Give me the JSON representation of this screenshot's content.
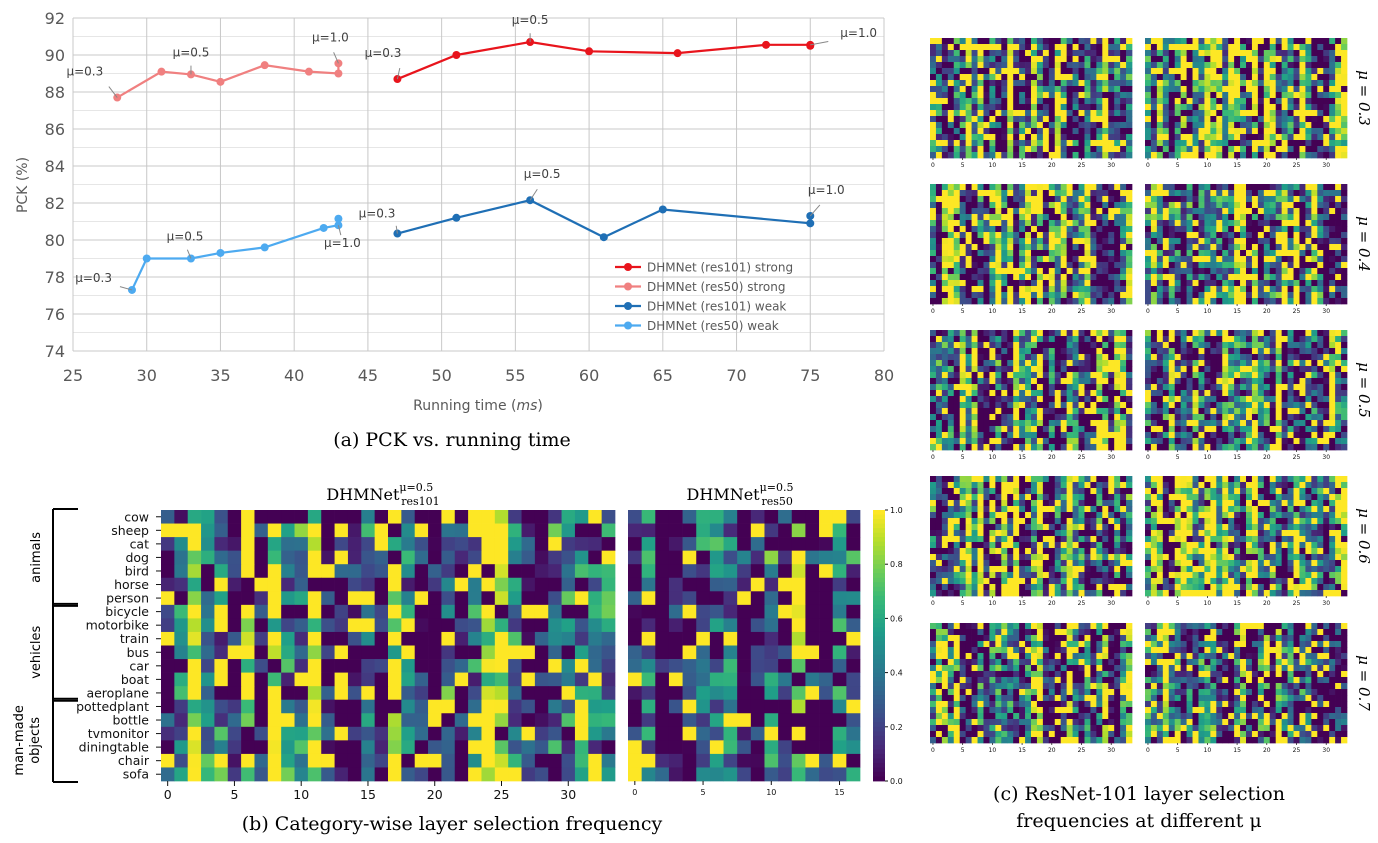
{
  "chart_data": [
    {
      "type": "line",
      "title": "",
      "caption": "(a) PCK vs. running time",
      "xlabel_prefix": "Running time (",
      "xlabel_unit": "ms",
      "xlabel_suffix": ")",
      "ylabel": "PCK (%)",
      "xlim": [
        25,
        80
      ],
      "ylim": [
        74,
        92
      ],
      "xticks": [
        25,
        30,
        35,
        40,
        45,
        50,
        55,
        60,
        65,
        70,
        75,
        80
      ],
      "yticks": [
        74,
        76,
        78,
        80,
        82,
        84,
        86,
        88,
        90,
        92
      ],
      "grid": true,
      "legend_position": "lower-right",
      "series": [
        {
          "name": "DHMNet (res101) strong",
          "color": "#e8141c",
          "points": [
            [
              47,
              88.7
            ],
            [
              51,
              90.0
            ],
            [
              56,
              90.7
            ],
            [
              60,
              90.2
            ],
            [
              66,
              90.1
            ],
            [
              72,
              90.55
            ],
            [
              75,
              90.55
            ],
            [
              75,
              90.5
            ]
          ]
        },
        {
          "name": "DHMNet (res50) strong",
          "color": "#f08080",
          "points": [
            [
              28,
              87.7
            ],
            [
              31,
              89.1
            ],
            [
              33,
              88.95
            ],
            [
              35,
              88.55
            ],
            [
              38,
              89.45
            ],
            [
              41,
              89.1
            ],
            [
              43,
              89.0
            ],
            [
              43,
              89.55
            ]
          ]
        },
        {
          "name": "DHMNet (res101) weak",
          "color": "#1f6fb5",
          "points": [
            [
              47,
              80.35
            ],
            [
              51,
              81.2
            ],
            [
              56,
              82.15
            ],
            [
              61,
              80.15
            ],
            [
              65,
              81.65
            ],
            [
              75,
              80.9
            ],
            [
              75,
              81.3
            ]
          ]
        },
        {
          "name": "DHMNet (res50) weak",
          "color": "#4daaf0",
          "points": [
            [
              29,
              77.3
            ],
            [
              30,
              79.0
            ],
            [
              33,
              79.0
            ],
            [
              35,
              79.3
            ],
            [
              38,
              79.6
            ],
            [
              42,
              80.65
            ],
            [
              43,
              80.8
            ],
            [
              43,
              81.15
            ]
          ]
        }
      ],
      "annotations": [
        {
          "text": "μ=0.3",
          "at": [
            28,
            87.7
          ]
        },
        {
          "text": "μ=0.5",
          "at": [
            33,
            88.95
          ]
        },
        {
          "text": "μ=1.0",
          "at": [
            43,
            89.55
          ]
        },
        {
          "text": "μ=0.3",
          "at": [
            47,
            88.7
          ]
        },
        {
          "text": "μ=0.5",
          "at": [
            56,
            90.7
          ]
        },
        {
          "text": "μ=1.0",
          "at": [
            75,
            90.55
          ]
        },
        {
          "text": "μ=0.3",
          "at": [
            29,
            77.3
          ]
        },
        {
          "text": "μ=0.5",
          "at": [
            33,
            79.0
          ]
        },
        {
          "text": "μ=1.0",
          "at": [
            43,
            80.8
          ]
        },
        {
          "text": "μ=0.3",
          "at": [
            47,
            80.35
          ]
        },
        {
          "text": "μ=0.5",
          "at": [
            56,
            82.15
          ]
        },
        {
          "text": "μ=1.0",
          "at": [
            75,
            81.3
          ]
        }
      ]
    },
    {
      "type": "heatmap",
      "caption": "(b) Category-wise layer selection frequency",
      "title_left": {
        "base": "DHMNet",
        "sup": "μ=0.5",
        "sub": "res101"
      },
      "title_right": {
        "base": "DHMNet",
        "sup": "μ=0.5",
        "sub": "res50"
      },
      "rows": [
        "cow",
        "sheep",
        "cat",
        "dog",
        "bird",
        "horse",
        "person",
        "bicycle",
        "motorbike",
        "train",
        "bus",
        "car",
        "boat",
        "aeroplane",
        "pottedplant",
        "bottle",
        "tvmonitor",
        "diningtable",
        "chair",
        "sofa"
      ],
      "groups": [
        {
          "label": "animals",
          "rows": [
            0,
            6
          ]
        },
        {
          "label": "vehicles",
          "rows": [
            7,
            13
          ]
        },
        {
          "label_lines": [
            "man-made",
            "objects"
          ],
          "rows": [
            14,
            19
          ]
        }
      ],
      "left_columns": 34,
      "left_xticks": [
        0,
        5,
        10,
        15,
        20,
        25,
        30
      ],
      "right_columns": 17,
      "right_xticks": [
        0,
        5,
        10,
        15
      ],
      "colorbar_ticks": [
        "0.0",
        "0.2",
        "0.4",
        "0.6",
        "0.8",
        "1.0"
      ],
      "colormap": "viridis",
      "value_range": [
        0,
        1
      ]
    },
    {
      "type": "heatmap",
      "caption_lines": [
        "(c) ResNet-101 layer selection",
        "frequencies at different μ"
      ],
      "mu_labels": [
        "μ = 0.3",
        "μ = 0.4",
        "μ = 0.5",
        "μ = 0.6",
        "μ = 0.7"
      ],
      "columns": 34,
      "rows_per_map": 20,
      "xticks": [
        0,
        5,
        10,
        15,
        20,
        25,
        30
      ],
      "colormap": "viridis",
      "value_range": [
        0,
        1
      ]
    }
  ]
}
